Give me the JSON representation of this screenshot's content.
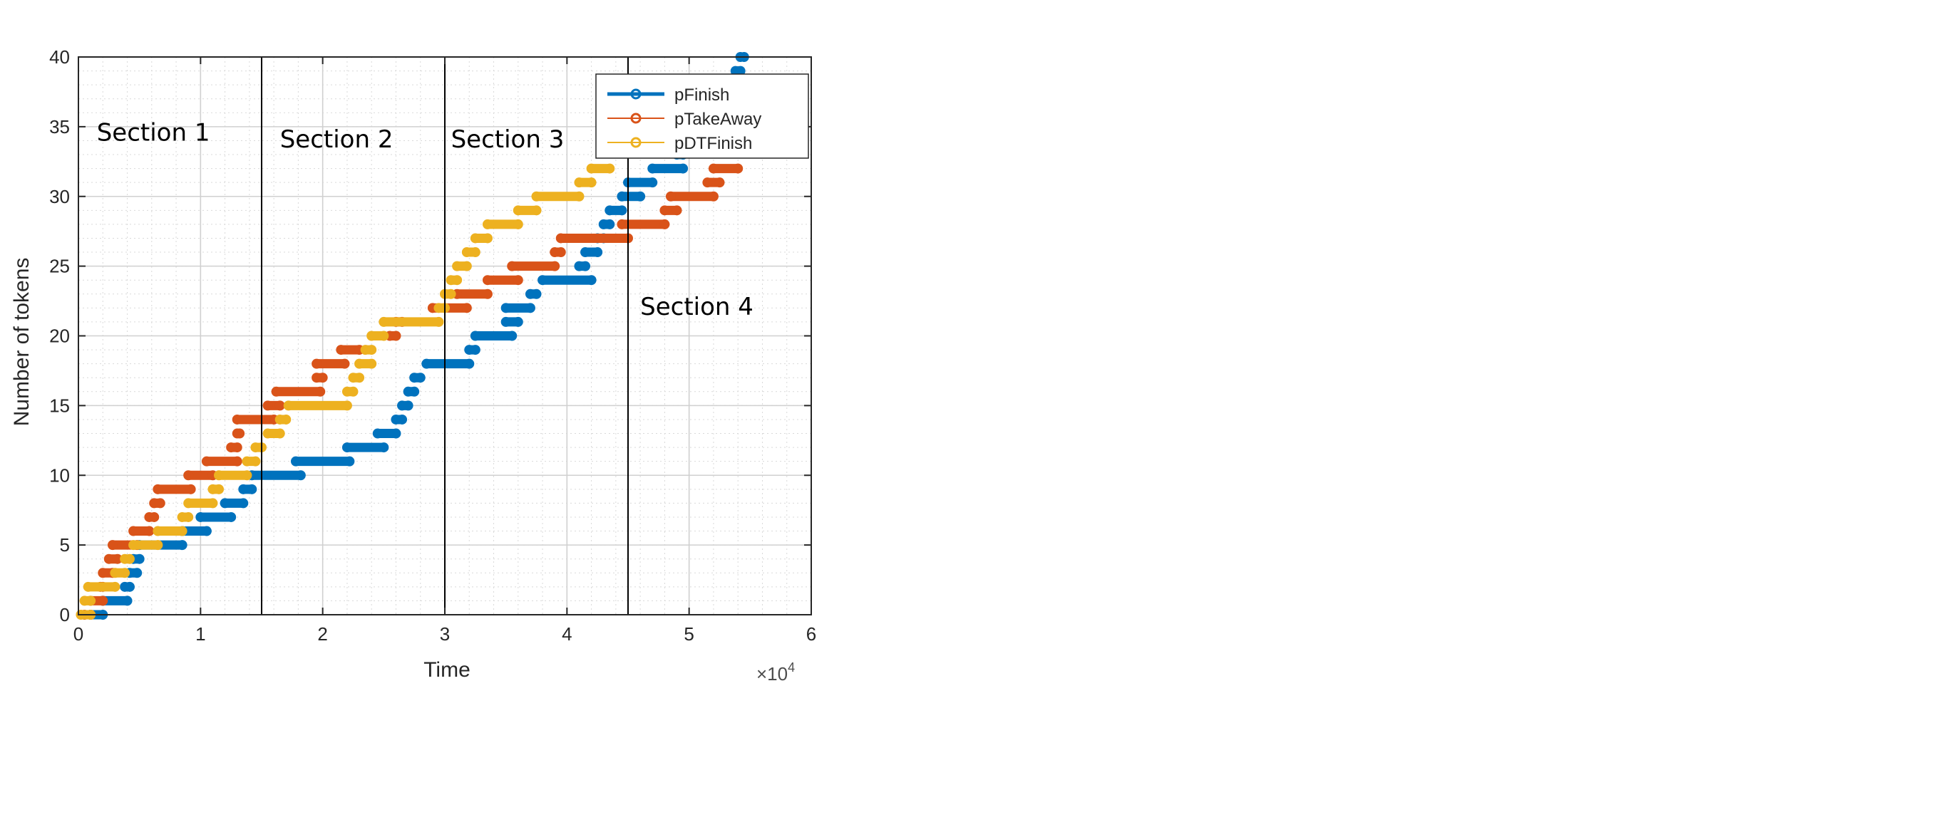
{
  "chart_data": {
    "type": "line",
    "title": "",
    "xlabel": "Time",
    "ylabel": "Number of tokens",
    "x_multiplier_label": "×10",
    "x_multiplier_exp": "4",
    "xlim": [
      0,
      6
    ],
    "ylim": [
      0,
      40
    ],
    "x_ticks": [
      0,
      1,
      2,
      3,
      4,
      5,
      6
    ],
    "y_ticks": [
      0,
      5,
      10,
      15,
      20,
      25,
      30,
      35,
      40
    ],
    "grid": true,
    "minor_grid": true,
    "legend_position": "top-right",
    "section_lines_x": [
      1.5,
      3.0,
      4.5
    ],
    "sections": [
      {
        "label": "Section 1",
        "x": 0.15,
        "y": 34
      },
      {
        "label": "Section 2",
        "x": 1.65,
        "y": 33.5
      },
      {
        "label": "Section 3",
        "x": 3.05,
        "y": 33.5
      },
      {
        "label": "Section 4",
        "x": 4.6,
        "y": 21.5
      }
    ],
    "series": [
      {
        "name": "pFinish",
        "color": "#0072BD",
        "steps": [
          [
            0.1,
            0.2,
            0
          ],
          [
            0.2,
            0.4,
            1
          ],
          [
            0.38,
            0.42,
            2
          ],
          [
            0.42,
            0.48,
            3
          ],
          [
            0.45,
            0.5,
            4
          ],
          [
            0.5,
            0.85,
            5
          ],
          [
            0.85,
            1.05,
            6
          ],
          [
            1.0,
            1.25,
            7
          ],
          [
            1.2,
            1.35,
            8
          ],
          [
            1.35,
            1.42,
            9
          ],
          [
            1.42,
            1.82,
            10
          ],
          [
            1.78,
            2.22,
            11
          ],
          [
            2.2,
            2.5,
            12
          ],
          [
            2.45,
            2.6,
            13
          ],
          [
            2.6,
            2.65,
            14
          ],
          [
            2.65,
            2.7,
            15
          ],
          [
            2.7,
            2.75,
            16
          ],
          [
            2.75,
            2.8,
            17
          ],
          [
            2.85,
            3.2,
            18
          ],
          [
            3.2,
            3.25,
            19
          ],
          [
            3.25,
            3.55,
            20
          ],
          [
            3.5,
            3.6,
            21
          ],
          [
            3.5,
            3.7,
            22
          ],
          [
            3.7,
            3.75,
            23
          ],
          [
            3.8,
            4.2,
            24
          ],
          [
            4.1,
            4.15,
            25
          ],
          [
            4.15,
            4.25,
            26
          ],
          [
            4.25,
            4.3,
            27
          ],
          [
            4.3,
            4.35,
            28
          ],
          [
            4.35,
            4.45,
            29
          ],
          [
            4.45,
            4.6,
            30
          ],
          [
            4.5,
            4.7,
            31
          ],
          [
            4.7,
            4.95,
            32
          ],
          [
            4.9,
            4.95,
            33
          ],
          [
            5.0,
            5.1,
            34
          ],
          [
            5.1,
            5.2,
            35
          ],
          [
            5.2,
            5.3,
            36
          ],
          [
            5.3,
            5.35,
            37
          ],
          [
            5.35,
            5.38,
            38
          ],
          [
            5.38,
            5.42,
            39
          ],
          [
            5.42,
            5.45,
            40
          ]
        ]
      },
      {
        "name": "pTakeAway",
        "color": "#D95319",
        "steps": [
          [
            0.05,
            0.1,
            0
          ],
          [
            0.1,
            0.2,
            1
          ],
          [
            0.18,
            0.2,
            2
          ],
          [
            0.2,
            0.28,
            3
          ],
          [
            0.25,
            0.32,
            4
          ],
          [
            0.28,
            0.48,
            5
          ],
          [
            0.45,
            0.58,
            6
          ],
          [
            0.58,
            0.62,
            7
          ],
          [
            0.62,
            0.67,
            8
          ],
          [
            0.65,
            0.92,
            9
          ],
          [
            0.9,
            1.1,
            10
          ],
          [
            1.05,
            1.3,
            11
          ],
          [
            1.25,
            1.3,
            12
          ],
          [
            1.3,
            1.32,
            13
          ],
          [
            1.3,
            1.6,
            14
          ],
          [
            1.55,
            1.65,
            15
          ],
          [
            1.62,
            1.98,
            16
          ],
          [
            1.95,
            2.0,
            17
          ],
          [
            1.95,
            2.18,
            18
          ],
          [
            2.15,
            2.3,
            19
          ],
          [
            2.55,
            2.6,
            20
          ],
          [
            2.6,
            2.65,
            21
          ],
          [
            2.9,
            3.18,
            22
          ],
          [
            3.1,
            3.35,
            23
          ],
          [
            3.35,
            3.6,
            24
          ],
          [
            3.55,
            3.9,
            25
          ],
          [
            3.9,
            3.95,
            26
          ],
          [
            3.95,
            4.5,
            27
          ],
          [
            4.45,
            4.8,
            28
          ],
          [
            4.8,
            4.9,
            29
          ],
          [
            4.85,
            5.2,
            30
          ],
          [
            5.15,
            5.25,
            31
          ],
          [
            5.2,
            5.4,
            32
          ]
        ]
      },
      {
        "name": "pDTFinish",
        "color": "#EDB120",
        "steps": [
          [
            0.02,
            0.1,
            0
          ],
          [
            0.05,
            0.1,
            1
          ],
          [
            0.08,
            0.3,
            2
          ],
          [
            0.3,
            0.38,
            3
          ],
          [
            0.38,
            0.42,
            4
          ],
          [
            0.45,
            0.65,
            5
          ],
          [
            0.65,
            0.85,
            6
          ],
          [
            0.85,
            0.9,
            7
          ],
          [
            0.9,
            1.1,
            8
          ],
          [
            1.1,
            1.15,
            9
          ],
          [
            1.15,
            1.38,
            10
          ],
          [
            1.38,
            1.45,
            11
          ],
          [
            1.45,
            1.5,
            12
          ],
          [
            1.55,
            1.65,
            13
          ],
          [
            1.65,
            1.7,
            14
          ],
          [
            1.72,
            2.2,
            15
          ],
          [
            2.2,
            2.25,
            16
          ],
          [
            2.25,
            2.3,
            17
          ],
          [
            2.3,
            2.4,
            18
          ],
          [
            2.35,
            2.4,
            19
          ],
          [
            2.4,
            2.5,
            20
          ],
          [
            2.5,
            2.95,
            21
          ],
          [
            2.95,
            3.0,
            22
          ],
          [
            3.0,
            3.05,
            23
          ],
          [
            3.05,
            3.1,
            24
          ],
          [
            3.1,
            3.18,
            25
          ],
          [
            3.18,
            3.25,
            26
          ],
          [
            3.25,
            3.35,
            27
          ],
          [
            3.35,
            3.6,
            28
          ],
          [
            3.6,
            3.75,
            29
          ],
          [
            3.75,
            4.1,
            30
          ],
          [
            4.1,
            4.2,
            31
          ],
          [
            4.2,
            4.35,
            32
          ]
        ]
      }
    ]
  }
}
